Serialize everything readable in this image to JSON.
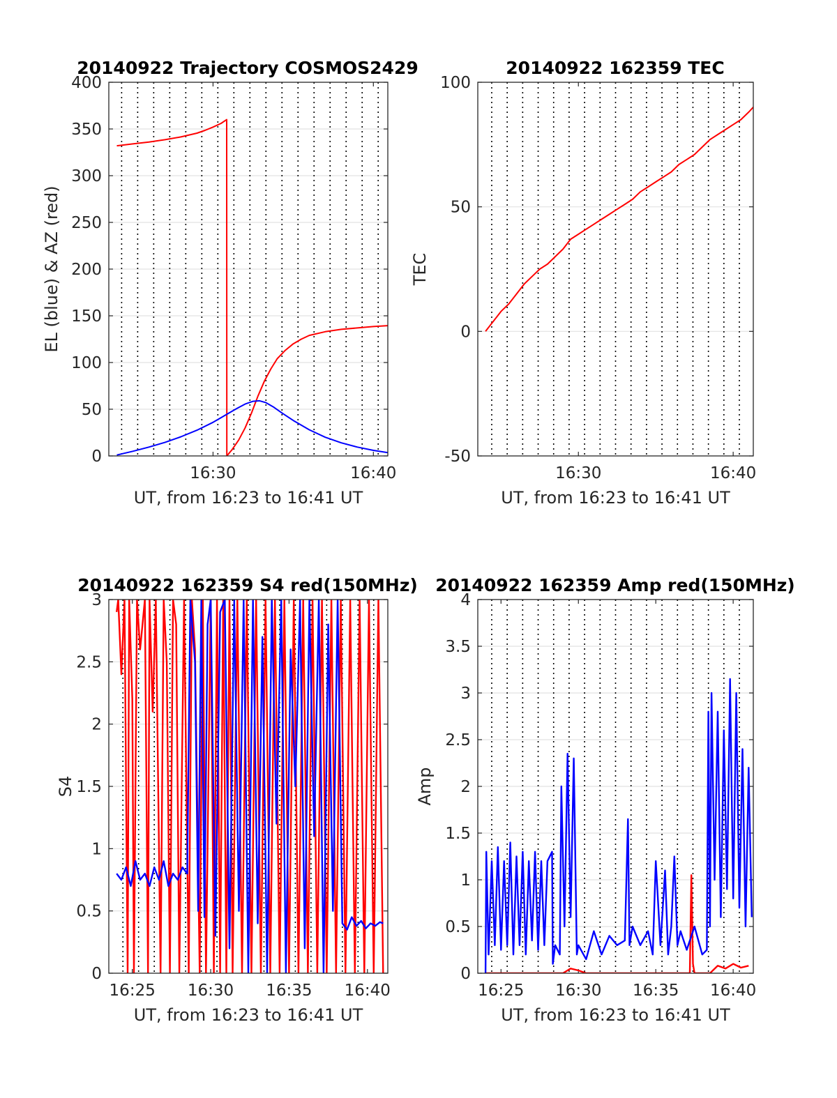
{
  "chart_data": [
    {
      "type": "line",
      "title": "20140922 Trajectory COSMOS2429",
      "xlabel": "UT, from 16:23 to 16:41 UT",
      "ylabel": "EL (blue) & AZ (red)",
      "xlim_min": [
        983.5,
        1000.9
      ],
      "ylim": [
        0,
        400
      ],
      "yticks": [
        "0",
        "50",
        "100",
        "150",
        "200",
        "250",
        "300",
        "350",
        "400"
      ],
      "xticks": [
        {
          "min": 990,
          "label": "16:30"
        },
        {
          "min": 1000,
          "label": "16:40"
        }
      ],
      "vlines_min": [
        984.3,
        985.3,
        986.3,
        987.3,
        988.3,
        989.3,
        990.3,
        991.3,
        992.3,
        993.3,
        994.3,
        995.3,
        996.3,
        997.3,
        998.3,
        999.3,
        1000.3
      ],
      "grid": "horizontal",
      "series": [
        {
          "color": "#ff0000",
          "x": [
            984.0,
            985.0,
            986.0,
            987.0,
            988.0,
            989.0,
            989.5,
            990.0,
            990.5,
            990.85,
            990.86,
            991.2,
            991.6,
            992.0,
            992.4,
            992.8,
            993.2,
            993.6,
            994.0,
            994.5,
            995.0,
            995.5,
            996.0,
            997.0,
            998.0,
            999.0,
            1000.0,
            1000.9
          ],
          "y": [
            332,
            334,
            336,
            338.5,
            341.5,
            345.5,
            348.5,
            352,
            356,
            360,
            0,
            7,
            17,
            30,
            46,
            64,
            80,
            93,
            104,
            113,
            120,
            125,
            129,
            133,
            135.5,
            137,
            138.5,
            139.5
          ]
        },
        {
          "color": "#0000ff",
          "x": [
            984.0,
            985.0,
            986.0,
            987.0,
            988.0,
            989.0,
            990.0,
            990.5,
            991.0,
            991.5,
            992.0,
            992.5,
            992.9,
            993.3,
            993.8,
            994.3,
            995.0,
            996.0,
            997.0,
            998.0,
            999.0,
            1000.0,
            1000.9
          ],
          "y": [
            1,
            5,
            9.5,
            14.5,
            20.5,
            27.5,
            36,
            41,
            46,
            51,
            55.5,
            58.5,
            59,
            57,
            52,
            46,
            38,
            28,
            20,
            14,
            9.5,
            6,
            3.5
          ]
        }
      ]
    },
    {
      "type": "line",
      "title": "20140922 162359 TEC",
      "xlabel": "UT, from 16:23 to 16:41 UT",
      "ylabel": "TEC",
      "xlim_min": [
        983.5,
        1001.3
      ],
      "ylim": [
        -50,
        100
      ],
      "yticks": [
        "-50",
        "0",
        "50",
        "100"
      ],
      "xticks": [
        {
          "min": 990,
          "label": "16:30"
        },
        {
          "min": 1000,
          "label": "16:40"
        }
      ],
      "vlines_min": [
        984.4,
        985.4,
        986.4,
        987.4,
        988.4,
        989.4,
        990.4,
        991.4,
        992.4,
        993.4,
        994.4,
        995.4,
        996.4,
        997.4,
        998.4,
        999.4,
        1000.4
      ],
      "grid": "horizontal",
      "series": [
        {
          "color": "#ff0000",
          "x": [
            984.0,
            984.5,
            985.0,
            985.5,
            986.0,
            986.5,
            987.0,
            987.5,
            988.0,
            988.5,
            989.0,
            989.5,
            990.0,
            990.5,
            991.0,
            991.5,
            992.0,
            992.5,
            993.0,
            993.5,
            994.0,
            994.5,
            995.0,
            995.5,
            996.0,
            996.5,
            997.0,
            997.5,
            998.0,
            998.5,
            999.0,
            999.5,
            1000.0,
            1000.5,
            1001.0,
            1001.3
          ],
          "y": [
            0,
            4,
            8,
            11,
            15,
            19,
            22,
            25,
            27,
            30,
            33,
            37,
            39,
            41,
            43,
            45,
            47,
            49,
            51,
            53,
            56,
            58,
            60,
            62,
            64,
            67,
            69,
            71,
            74,
            77,
            79,
            81,
            83,
            85,
            88,
            90
          ]
        }
      ]
    },
    {
      "type": "line",
      "title": "20140922 162359 S4 red(150MHz)",
      "xlabel": "UT, from 16:23 to 16:41 UT",
      "ylabel": "S4",
      "xlim_min": [
        983.5,
        1001.3
      ],
      "ylim": [
        0,
        3
      ],
      "yticks": [
        "0",
        "0.5",
        "1",
        "1.5",
        "2",
        "2.5",
        "3"
      ],
      "xticks": [
        {
          "min": 985,
          "label": "16:25"
        },
        {
          "min": 990,
          "label": "16:30"
        },
        {
          "min": 995,
          "label": "16:35"
        },
        {
          "min": 1000,
          "label": "16:40"
        }
      ],
      "vlines_min": [
        984.4,
        985.4,
        986.4,
        987.4,
        988.4,
        989.4,
        990.4,
        991.4,
        992.4,
        993.4,
        994.4,
        995.4,
        996.4,
        997.4,
        998.4,
        999.4,
        1000.4
      ],
      "grid": "horizontal",
      "series": [
        {
          "color": "#ff0000",
          "x": [
            984.0,
            984.1,
            984.3,
            984.5,
            984.7,
            984.8,
            985.0,
            985.1,
            985.3,
            985.5,
            985.8,
            986.0,
            986.1,
            986.3,
            986.5,
            986.8,
            987.0,
            987.2,
            987.4,
            987.6,
            987.8,
            988.0,
            988.3,
            988.6,
            988.8,
            989.0,
            989.3,
            989.5,
            989.7,
            990.0,
            990.2,
            990.4,
            990.6,
            990.8,
            991.0,
            991.2,
            991.4,
            991.7,
            992.0,
            992.3,
            992.6,
            992.9,
            993.2,
            993.5,
            993.8,
            994.1,
            994.4,
            994.7,
            995.0,
            995.3,
            995.6,
            995.9,
            996.2,
            996.5,
            996.8,
            997.1,
            997.4,
            997.7,
            998.0,
            998.3,
            998.6,
            998.9,
            999.2,
            999.5,
            999.8,
            1000.1,
            1000.4,
            1000.7,
            1001.0
          ],
          "y": [
            2.9,
            3,
            2.4,
            3,
            0,
            3,
            2.2,
            0,
            3,
            2.6,
            3,
            0,
            3,
            2.1,
            3,
            0,
            3,
            2.5,
            0,
            3,
            2.8,
            0,
            3,
            0,
            3,
            2.6,
            0,
            3,
            0,
            3,
            0,
            3,
            0,
            3,
            0,
            3,
            0,
            3,
            0,
            3,
            0,
            3,
            0,
            3,
            0,
            3,
            0,
            3,
            0,
            3,
            0,
            3,
            0,
            3,
            0,
            3,
            0,
            3,
            0,
            3,
            0,
            3,
            0,
            3,
            0,
            3,
            0,
            3,
            0
          ]
        },
        {
          "color": "#0000ff",
          "x": [
            984.0,
            984.3,
            984.6,
            984.9,
            985.2,
            985.5,
            985.8,
            986.1,
            986.4,
            986.7,
            987.0,
            987.3,
            987.6,
            987.9,
            988.2,
            988.5,
            988.7,
            989.0,
            989.2,
            989.4,
            989.6,
            989.8,
            990.0,
            990.3,
            990.6,
            990.9,
            991.2,
            991.5,
            991.8,
            992.1,
            992.4,
            992.7,
            993.0,
            993.3,
            993.6,
            993.9,
            994.2,
            994.5,
            994.8,
            995.1,
            995.4,
            995.7,
            996.0,
            996.3,
            996.6,
            996.9,
            997.2,
            997.5,
            997.8,
            998.1,
            998.4,
            998.7,
            999.0,
            999.3,
            999.6,
            999.9,
            1000.2,
            1000.5,
            1000.8,
            1001.0
          ],
          "y": [
            0.8,
            0.75,
            0.85,
            0.7,
            0.9,
            0.75,
            0.8,
            0.7,
            0.85,
            0.75,
            0.9,
            0.7,
            0.8,
            0.75,
            0.85,
            0.8,
            3,
            2.5,
            0.5,
            3,
            0.45,
            2.8,
            3,
            0.3,
            2.9,
            3,
            0.2,
            3,
            0.5,
            3,
            0,
            3,
            0.4,
            2.7,
            0,
            3,
            1.2,
            3,
            0,
            2.6,
            1.5,
            3,
            0.2,
            3,
            1.1,
            3,
            0,
            2.8,
            0.5,
            3,
            0.4,
            0.35,
            0.45,
            0.38,
            0.42,
            0.36,
            0.4,
            0.38,
            0.41,
            0.4
          ]
        }
      ]
    },
    {
      "type": "line",
      "title": "20140922 162359 Amp red(150MHz)",
      "xlabel": "UT, from 16:23 to 16:41 UT",
      "ylabel": "Amp",
      "xlim_min": [
        983.5,
        1001.3
      ],
      "ylim": [
        0,
        4
      ],
      "yticks": [
        "0",
        "0.5",
        "1",
        "1.5",
        "2",
        "2.5",
        "3",
        "3.5",
        "4"
      ],
      "xticks": [
        {
          "min": 985,
          "label": "16:25"
        },
        {
          "min": 990,
          "label": "16:30"
        },
        {
          "min": 995,
          "label": "16:35"
        },
        {
          "min": 1000,
          "label": "16:40"
        }
      ],
      "vlines_min": [
        984.4,
        985.4,
        986.4,
        987.4,
        988.4,
        989.4,
        990.4,
        991.4,
        992.4,
        993.4,
        994.4,
        995.4,
        996.4,
        997.4,
        998.4,
        999.4,
        1000.4
      ],
      "grid": "horizontal",
      "series": [
        {
          "color": "#ff0000",
          "x": [
            984.0,
            989.0,
            989.5,
            990.0,
            990.5,
            997.2,
            997.3,
            997.4,
            997.5,
            998.5,
            999.0,
            999.5,
            1000.0,
            1000.5,
            1001.0
          ],
          "y": [
            0,
            0,
            0.05,
            0.03,
            0,
            0,
            1.05,
            0.1,
            0,
            0,
            0.08,
            0.05,
            0.1,
            0.06,
            0.08
          ]
        },
        {
          "color": "#0000ff",
          "x": [
            984.0,
            984.05,
            984.2,
            984.4,
            984.6,
            984.8,
            985.0,
            985.2,
            985.4,
            985.6,
            985.8,
            986.0,
            986.2,
            986.4,
            986.6,
            986.8,
            987.0,
            987.2,
            987.4,
            987.6,
            987.8,
            988.0,
            988.3,
            988.35,
            988.5,
            988.8,
            988.9,
            989.1,
            989.3,
            989.5,
            989.7,
            989.9,
            990.0,
            990.5,
            991.0,
            991.5,
            992.0,
            992.5,
            993.0,
            993.2,
            993.3,
            993.5,
            994.0,
            994.5,
            994.8,
            995.0,
            995.3,
            995.6,
            995.8,
            996.0,
            996.2,
            996.4,
            996.6,
            997.0,
            997.5,
            998.0,
            998.3,
            998.4,
            998.5,
            998.6,
            998.8,
            999.0,
            999.2,
            999.4,
            999.6,
            999.8,
            1000.0,
            1000.2,
            1000.4,
            1000.6,
            1000.8,
            1001.0,
            1001.2
          ],
          "y": [
            0,
            1.3,
            0.2,
            1.2,
            0.3,
            1.35,
            0.25,
            1.2,
            0.3,
            1.4,
            0.2,
            1.25,
            0.3,
            1.3,
            0.2,
            1.2,
            0.35,
            1.3,
            0.25,
            1.2,
            0.3,
            1.2,
            1.3,
            0.1,
            0.3,
            0.2,
            2.0,
            0.5,
            2.35,
            0.6,
            2.3,
            0.2,
            0.3,
            0.15,
            0.45,
            0.2,
            0.4,
            0.3,
            0.35,
            1.65,
            0.3,
            0.5,
            0.3,
            0.45,
            0.2,
            1.2,
            0.3,
            1.1,
            0.2,
            0.5,
            1.25,
            0.3,
            0.45,
            0.25,
            0.5,
            0.2,
            0.25,
            2.8,
            0.5,
            3.0,
            1.0,
            2.8,
            0.6,
            2.6,
            0.9,
            3.15,
            0.8,
            3.0,
            0.7,
            2.4,
            0.5,
            2.2,
            0.6
          ]
        }
      ]
    }
  ]
}
